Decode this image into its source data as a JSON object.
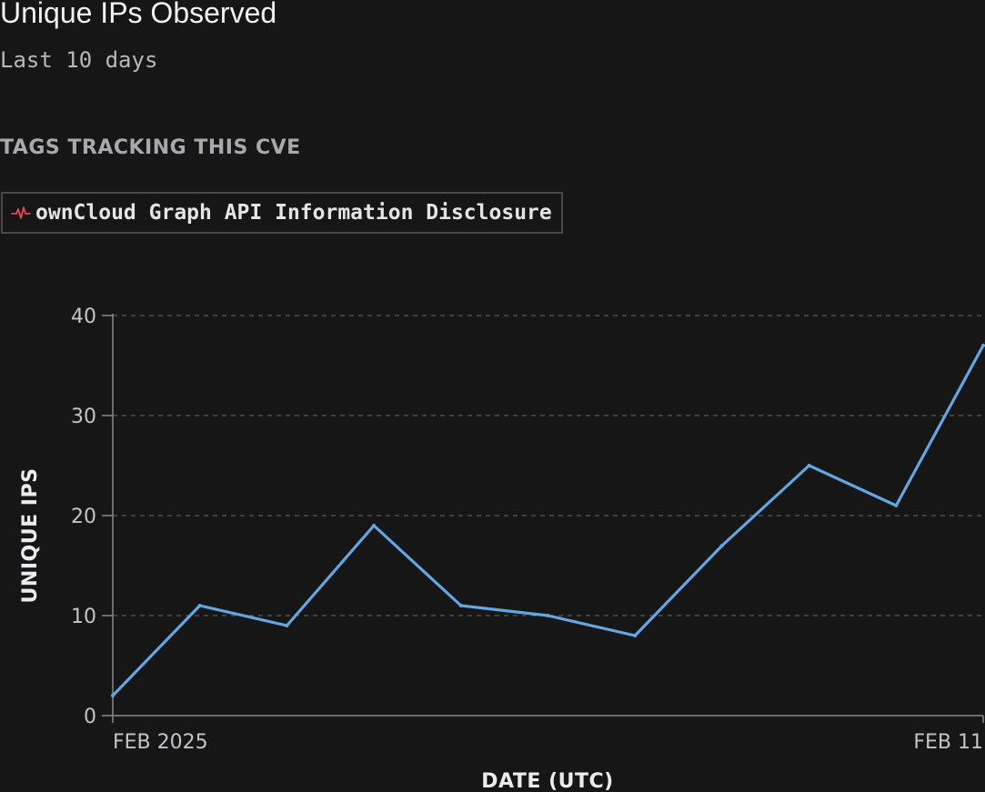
{
  "header": {
    "title": "Unique IPs Observed",
    "subtitle": "Last 10 days"
  },
  "tags_section": {
    "heading": "TAGS TRACKING THIS CVE",
    "tags": [
      {
        "label": "ownCloud Graph API Information Disclosure",
        "icon": "activity-pulse-icon",
        "icon_color": "#e5484d"
      }
    ]
  },
  "chart_data": {
    "type": "line",
    "xlabel": "DATE (UTC)",
    "ylabel": "UNIQUE IPS",
    "ylim": [
      0,
      40
    ],
    "yticks": [
      0,
      10,
      20,
      30,
      40
    ],
    "x_tick_labels": [
      "FEB 2025",
      "FEB 11"
    ],
    "grid": "horizontal-dashed",
    "line_color": "#62a6e3",
    "series": [
      {
        "values": [
          2,
          11,
          9,
          19,
          11,
          10,
          8,
          17,
          25,
          21,
          37
        ]
      }
    ]
  }
}
